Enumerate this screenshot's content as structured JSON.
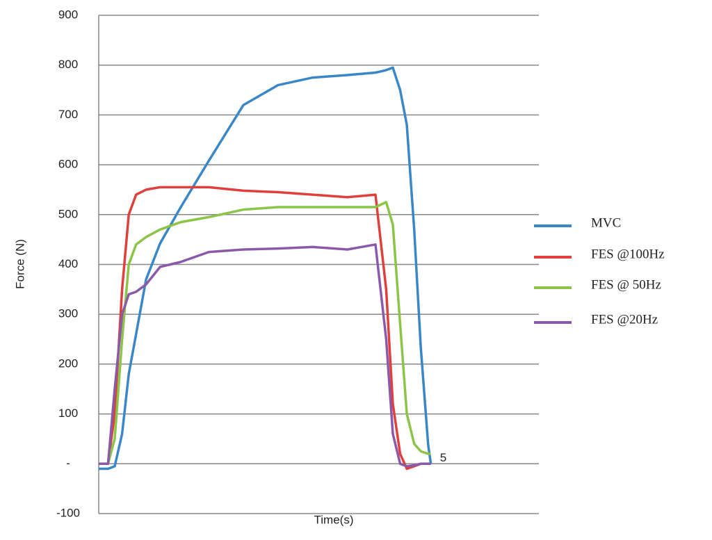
{
  "chart_data": {
    "type": "line",
    "x_label": "Time(s)",
    "y_label": "Force (N)",
    "x": [
      0,
      0.14,
      0.24,
      0.35,
      0.45,
      0.56,
      0.71,
      0.92,
      1.23,
      1.65,
      2.17,
      2.69,
      3.21,
      3.73,
      4.15,
      4.31,
      4.41,
      4.52,
      4.62,
      4.73,
      4.83,
      4.94,
      4.98
    ],
    "series": [
      {
        "name": "MVC",
        "color": "#3a87c8",
        "values": [
          -10,
          -10,
          -5,
          60,
          180,
          260,
          370,
          442,
          515,
          608,
          720,
          760,
          775,
          780,
          785,
          790,
          795,
          750,
          680,
          470,
          233,
          38,
          0
        ]
      },
      {
        "name": "FES @100Hz",
        "color": "#e0403c",
        "values": [
          0,
          0,
          100,
          350,
          500,
          540,
          550,
          555,
          555,
          555,
          548,
          545,
          540,
          535,
          540,
          350,
          120,
          20,
          -10,
          -5,
          0,
          0,
          0
        ]
      },
      {
        "name": "FES @ 50Hz",
        "color": "#8cc448",
        "values": [
          0,
          0,
          50,
          250,
          400,
          440,
          455,
          470,
          485,
          495,
          510,
          515,
          515,
          515,
          515,
          525,
          480,
          280,
          100,
          40,
          25,
          20,
          20
        ]
      },
      {
        "name": "FES @20Hz",
        "color": "#8a5aa8",
        "values": [
          0,
          0,
          150,
          300,
          340,
          345,
          360,
          395,
          405,
          425,
          430,
          432,
          435,
          430,
          440,
          250,
          60,
          0,
          -5,
          -3,
          0,
          0,
          0
        ]
      }
    ],
    "xlim": [
      0,
      6.6
    ],
    "xticks": [
      5
    ],
    "ylim": [
      -100,
      900
    ],
    "yticks": [
      -100,
      {
        "value": 0,
        "label": "-"
      },
      100,
      200,
      300,
      400,
      500,
      600,
      700,
      800,
      900
    ],
    "grid": true
  }
}
